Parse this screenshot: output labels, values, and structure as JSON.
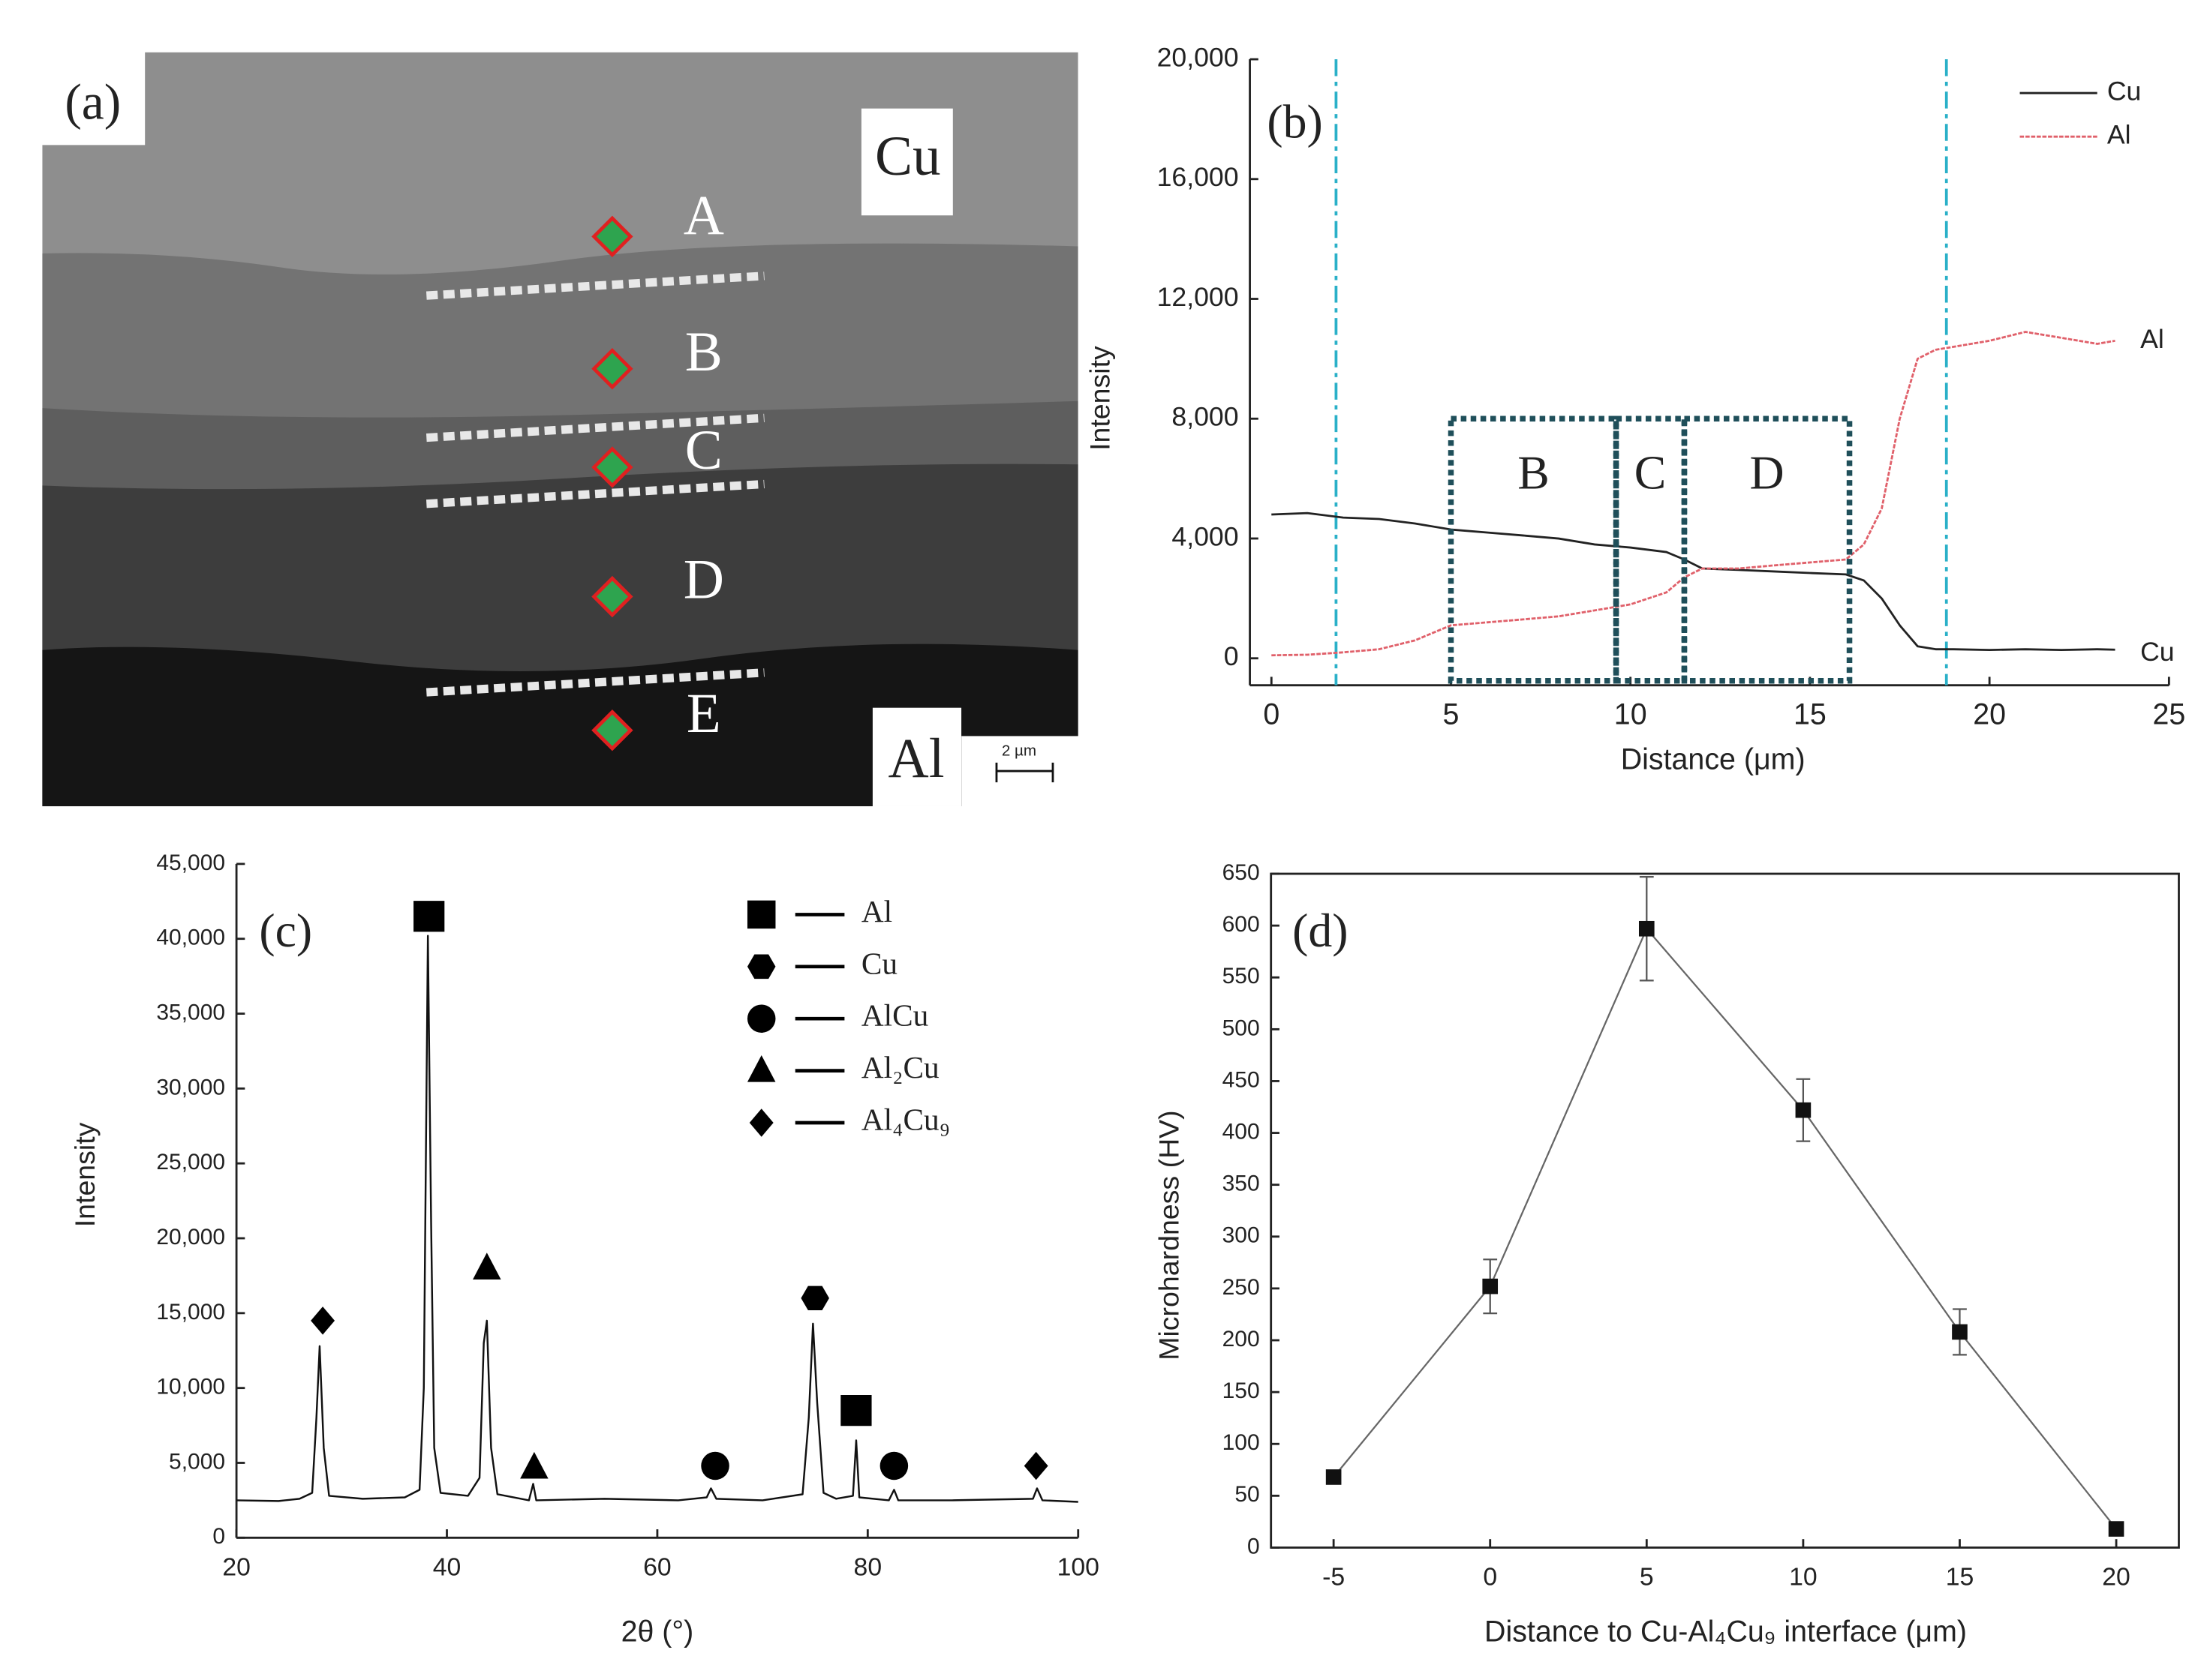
{
  "micrograph": {
    "label": "(a)",
    "phases": [
      "Cu",
      "Al"
    ],
    "points": [
      "A",
      "B",
      "C",
      "D",
      "E"
    ],
    "scale_bar": "2 µm"
  },
  "chart_data": [
    {
      "type": "line",
      "label": "(b)",
      "x_label": "Distance (μm)",
      "y_label": "Intensity",
      "xlim": [
        -0.6,
        25
      ],
      "ylim": [
        -900,
        20000
      ],
      "xticks": [
        0,
        5,
        10,
        15,
        20,
        25
      ],
      "yticks": [
        0,
        {
          "value": 4000,
          "label": "4,000"
        },
        {
          "value": 8000,
          "label": "8,000"
        },
        {
          "value": 12000,
          "label": "12,000"
        },
        {
          "value": 16000,
          "label": "16,000"
        },
        {
          "value": 20000,
          "label": "20,000"
        }
      ],
      "legend": "upper right",
      "series": [
        {
          "name": "Cu",
          "color": "#222222",
          "x": [
            0,
            1,
            2,
            3,
            4,
            5,
            6,
            7,
            8,
            9,
            10,
            11,
            11.5,
            12,
            13,
            14,
            15,
            16,
            16.5,
            17,
            17.5,
            18,
            18.5,
            19,
            20,
            21,
            22,
            23,
            23.5
          ],
          "values": [
            4800,
            4850,
            4700,
            4650,
            4500,
            4300,
            4200,
            4100,
            4000,
            3800,
            3700,
            3550,
            3300,
            3000,
            2950,
            2900,
            2850,
            2800,
            2600,
            2000,
            1100,
            400,
            300,
            300,
            280,
            300,
            280,
            300,
            290
          ]
        },
        {
          "name": "Al",
          "color": "#e0606a",
          "x": [
            0,
            1,
            2,
            3,
            4,
            5,
            6,
            7,
            8,
            9,
            10,
            11,
            11.5,
            12,
            13,
            14,
            15,
            16,
            16.5,
            17,
            17.5,
            18,
            18.5,
            19,
            20,
            21,
            22,
            23,
            23.5
          ],
          "values": [
            100,
            120,
            200,
            300,
            600,
            1100,
            1200,
            1300,
            1400,
            1600,
            1800,
            2200,
            2700,
            3000,
            3000,
            3100,
            3200,
            3300,
            3800,
            5000,
            8000,
            10000,
            10300,
            10400,
            10600,
            10900,
            10700,
            10500,
            10600
          ]
        }
      ],
      "vlines": [
        1.8,
        18.8
      ],
      "regions": [
        {
          "label": "B",
          "x": [
            5,
            9.6
          ],
          "y": [
            0,
            8000
          ]
        },
        {
          "label": "C",
          "x": [
            9.6,
            11.5
          ],
          "y": [
            0,
            8000
          ]
        },
        {
          "label": "D",
          "x": [
            11.5,
            16.1
          ],
          "y": [
            0,
            8000
          ]
        }
      ],
      "annotations": [
        {
          "text": "Al",
          "x": 24.2,
          "y": 10600
        },
        {
          "text": "Cu",
          "x": 24.2,
          "y": 150
        }
      ]
    },
    {
      "type": "xrd",
      "label": "(c)",
      "x_label": "2θ (°)",
      "y_label": "Intensity",
      "xlim": [
        20,
        100
      ],
      "ylim": [
        0,
        45000
      ],
      "xticks": [
        20,
        40,
        60,
        80,
        100
      ],
      "yticks": [
        0,
        {
          "value": 5000,
          "label": "5,000"
        },
        {
          "value": 10000,
          "label": "10,000"
        },
        {
          "value": 15000,
          "label": "15,000"
        },
        {
          "value": 20000,
          "label": "20,000"
        },
        {
          "value": 25000,
          "label": "25,000"
        },
        {
          "value": 30000,
          "label": "30,000"
        },
        {
          "value": 35000,
          "label": "35,000"
        },
        {
          "value": 40000,
          "label": "40,000"
        },
        {
          "value": 45000,
          "label": "45,000"
        }
      ],
      "legend": "upper right",
      "series": [
        {
          "color": "#111111",
          "x": [
            20,
            24,
            26,
            27.2,
            27.6,
            27.9,
            28.3,
            28.8,
            32,
            36,
            37.4,
            37.8,
            38.2,
            38.5,
            38.8,
            39.4,
            42,
            43.1,
            43.5,
            43.8,
            44.2,
            44.8,
            47.8,
            48.2,
            48.5,
            55,
            62,
            64.7,
            65.1,
            65.6,
            70,
            73.8,
            74.4,
            74.8,
            75.2,
            75.8,
            77,
            78.6,
            78.9,
            79.2,
            82,
            82.5,
            82.9,
            88,
            95.7,
            96.1,
            96.6,
            100
          ],
          "values": [
            2500,
            2450,
            2600,
            3000,
            8000,
            12800,
            6000,
            2800,
            2600,
            2700,
            3200,
            10000,
            40200,
            21000,
            6000,
            3000,
            2800,
            4000,
            13000,
            14500,
            6000,
            2900,
            2500,
            3600,
            2500,
            2600,
            2500,
            2700,
            3300,
            2600,
            2500,
            2900,
            8000,
            14300,
            9000,
            3000,
            2600,
            2800,
            6500,
            2700,
            2500,
            3200,
            2500,
            2500,
            2600,
            3300,
            2500,
            2400
          ]
        }
      ],
      "peak_markers": [
        {
          "name": "Al",
          "shape": "square",
          "x": [
            38.3,
            78.9
          ],
          "y": [
            41500,
            8500
          ]
        },
        {
          "name": "Cu",
          "shape": "hexagon",
          "x": [
            75
          ],
          "y": [
            16000
          ]
        },
        {
          "name": "AlCu",
          "shape": "circle",
          "x": [
            65.5,
            82.5
          ],
          "y": [
            4800,
            4800
          ]
        },
        {
          "name": "Al₂Cu",
          "shape": "triangle",
          "x": [
            43.8,
            48.3
          ],
          "y": [
            18000,
            4700
          ]
        },
        {
          "name": "Al₄Cu₉",
          "shape": "diamond",
          "x": [
            28.2,
            96
          ],
          "y": [
            14500,
            4800
          ]
        }
      ]
    },
    {
      "type": "errorline",
      "label": "(d)",
      "x_label": "Distance to Cu-Al₄Cu₉ interface (μm)",
      "y_label": "Microhardness (HV)",
      "xlim": [
        -7,
        22
      ],
      "ylim": [
        0,
        650
      ],
      "xticks": [
        -5,
        0,
        5,
        10,
        15,
        20
      ],
      "yticks": [
        0,
        50,
        100,
        150,
        200,
        250,
        300,
        350,
        400,
        450,
        500,
        550,
        600,
        650
      ],
      "color": "#111111",
      "line_color": "#666666",
      "x": [
        -5,
        0,
        5,
        10,
        15,
        20
      ],
      "values": [
        68,
        252,
        597,
        422,
        208,
        18
      ],
      "errors": [
        5,
        26,
        50,
        30,
        22,
        5
      ]
    }
  ]
}
